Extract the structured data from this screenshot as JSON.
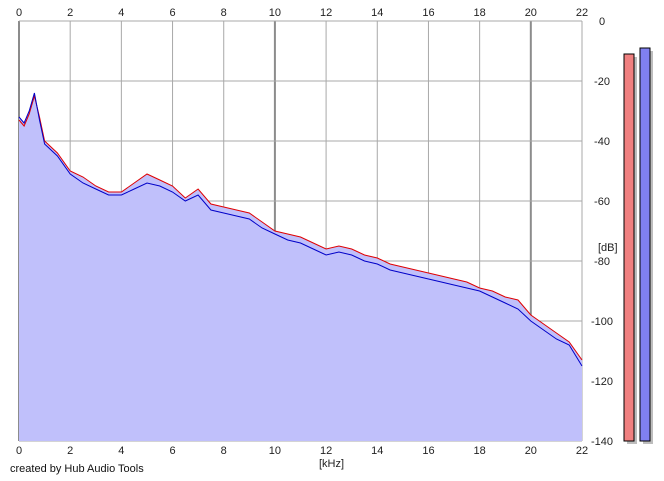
{
  "chart_data": {
    "type": "area",
    "x_unit": "[kHz]",
    "y_unit": "[dB]",
    "xlim": [
      0,
      22
    ],
    "ylim": [
      -140,
      0
    ],
    "x_ticks": [
      0,
      2,
      4,
      6,
      8,
      10,
      12,
      14,
      16,
      18,
      20,
      22
    ],
    "y_ticks": [
      0,
      -20,
      -40,
      -60,
      -80,
      -100,
      -120,
      -140
    ],
    "grid": true,
    "colors": {
      "fill": "#c0c0fb",
      "channel_a": "#e00000",
      "channel_b": "#0000c8",
      "grid": "#a8a8a8",
      "major_grid": "#8c8c8c"
    },
    "series": [
      {
        "color": "#e00000",
        "x": [
          0,
          0.2,
          0.4,
          0.6,
          0.8,
          1,
          1.5,
          2,
          2.5,
          3,
          3.5,
          4,
          4.5,
          5,
          5.5,
          6,
          6.5,
          7,
          7.5,
          8,
          8.5,
          9,
          9.5,
          10,
          10.5,
          11,
          11.5,
          12,
          12.5,
          13,
          13.5,
          14,
          14.5,
          15,
          15.5,
          16,
          16.5,
          17,
          17.5,
          18,
          18.5,
          19,
          19.5,
          20,
          20.5,
          21,
          21.5,
          22
        ],
        "y": [
          -33,
          -35,
          -31,
          -25,
          -32,
          -40,
          -44,
          -50,
          -52,
          -55,
          -57,
          -57,
          -54,
          -51,
          -53,
          -55,
          -59,
          -56,
          -61,
          -62,
          -63,
          -64,
          -67,
          -70,
          -71,
          -72,
          -74,
          -76,
          -75,
          -76,
          -78,
          -79,
          -81,
          -82,
          -83,
          -84,
          -85,
          -86,
          -87,
          -89,
          -90,
          -92,
          -93,
          -98,
          -101,
          -104,
          -107,
          -113
        ]
      },
      {
        "color": "#0000c8",
        "x": [
          0,
          0.2,
          0.4,
          0.6,
          0.8,
          1,
          1.5,
          2,
          2.5,
          3,
          3.5,
          4,
          4.5,
          5,
          5.5,
          6,
          6.5,
          7,
          7.5,
          8,
          8.5,
          9,
          9.5,
          10,
          10.5,
          11,
          11.5,
          12,
          12.5,
          13,
          13.5,
          14,
          14.5,
          15,
          15.5,
          16,
          16.5,
          17,
          17.5,
          18,
          18.5,
          19,
          19.5,
          20,
          20.5,
          21,
          21.5,
          22
        ],
        "y": [
          -32,
          -34,
          -30,
          -24,
          -33,
          -41,
          -45,
          -51,
          -54,
          -56,
          -58,
          -58,
          -56,
          -54,
          -55,
          -57,
          -60,
          -58,
          -63,
          -64,
          -65,
          -66,
          -69,
          -71,
          -73,
          -74,
          -76,
          -78,
          -77,
          -78,
          -80,
          -81,
          -83,
          -84,
          -85,
          -86,
          -87,
          -88,
          -89,
          -90,
          -92,
          -94,
          -96,
          -100,
          -103,
          -106,
          -108,
          -115
        ]
      }
    ],
    "level_meters": [
      {
        "color": "#f08080",
        "level_db": -11
      },
      {
        "color": "#8080f0",
        "level_db": -9
      }
    ]
  },
  "footer": {
    "credit": "created by Hub Audio Tools"
  }
}
